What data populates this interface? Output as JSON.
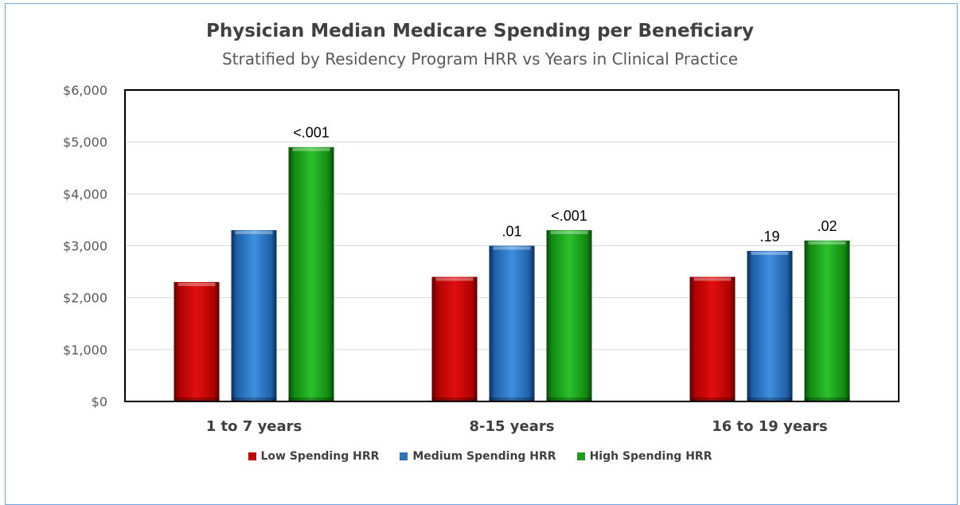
{
  "chart_data": {
    "type": "bar",
    "title": "Physician Median Medicare Spending per Beneficiary",
    "subtitle": "Stratified by Residency Program HRR vs Years in Clinical Practice",
    "categories": [
      "1 to 7 years",
      "8-15 years",
      "16 to 19 years"
    ],
    "series": [
      {
        "name": "Low Spending HRR",
        "values": [
          2300,
          2400,
          2400
        ],
        "color": "#c00000"
      },
      {
        "name": "Medium Spending HRR",
        "values": [
          3300,
          3000,
          2900
        ],
        "color": "#2e75b6"
      },
      {
        "name": "High Spending HRR",
        "values": [
          4900,
          3300,
          3100
        ],
        "color": "#1f9e1f"
      }
    ],
    "annotations": [
      {
        "category": "1 to 7 years",
        "series": "High Spending HRR",
        "text": "<.001"
      },
      {
        "category": "8-15 years",
        "series": "Medium Spending HRR",
        "text": ".01"
      },
      {
        "category": "8-15 years",
        "series": "High Spending HRR",
        "text": "<.001"
      },
      {
        "category": "16 to 19 years",
        "series": "Medium Spending HRR",
        "text": ".19"
      },
      {
        "category": "16 to 19 years",
        "series": "High Spending HRR",
        "text": ".02"
      }
    ],
    "yticks": [
      "$0",
      "$1,000",
      "$2,000",
      "$3,000",
      "$4,000",
      "$5,000",
      "$6,000"
    ],
    "ylim": [
      0,
      6000
    ],
    "grid": true,
    "legend": "bottom"
  }
}
